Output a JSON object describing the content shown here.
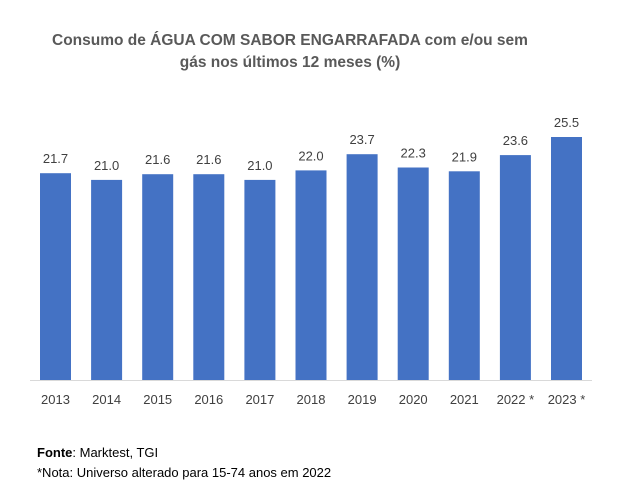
{
  "chart_data": {
    "type": "bar",
    "title_line1": "Consumo de  ÁGUA COM SABOR ENGARRAFADA com e/ou sem",
    "title_line2": "gás nos últimos 12 meses (%)",
    "categories": [
      "2013",
      "2014",
      "2015",
      "2016",
      "2017",
      "2018",
      "2019",
      "2020",
      "2021",
      "2022 *",
      "2023 *"
    ],
    "values": [
      21.7,
      21.0,
      21.6,
      21.6,
      21.0,
      22.0,
      23.7,
      22.3,
      21.9,
      23.6,
      25.5
    ],
    "value_labels": [
      "21.7",
      "21.0",
      "21.6",
      "21.6",
      "21.0",
      "22.0",
      "23.7",
      "22.3",
      "21.9",
      "23.6",
      "25.5"
    ],
    "xlabel": "",
    "ylabel": "",
    "ylim": [
      0,
      27
    ],
    "grid": false,
    "bar_color": "#4472C4"
  },
  "source": {
    "label": "Fonte",
    "text": ": Marktest, TGI"
  },
  "footnote": "*Nota: Universo alterado para 15-74 anos em 2022"
}
